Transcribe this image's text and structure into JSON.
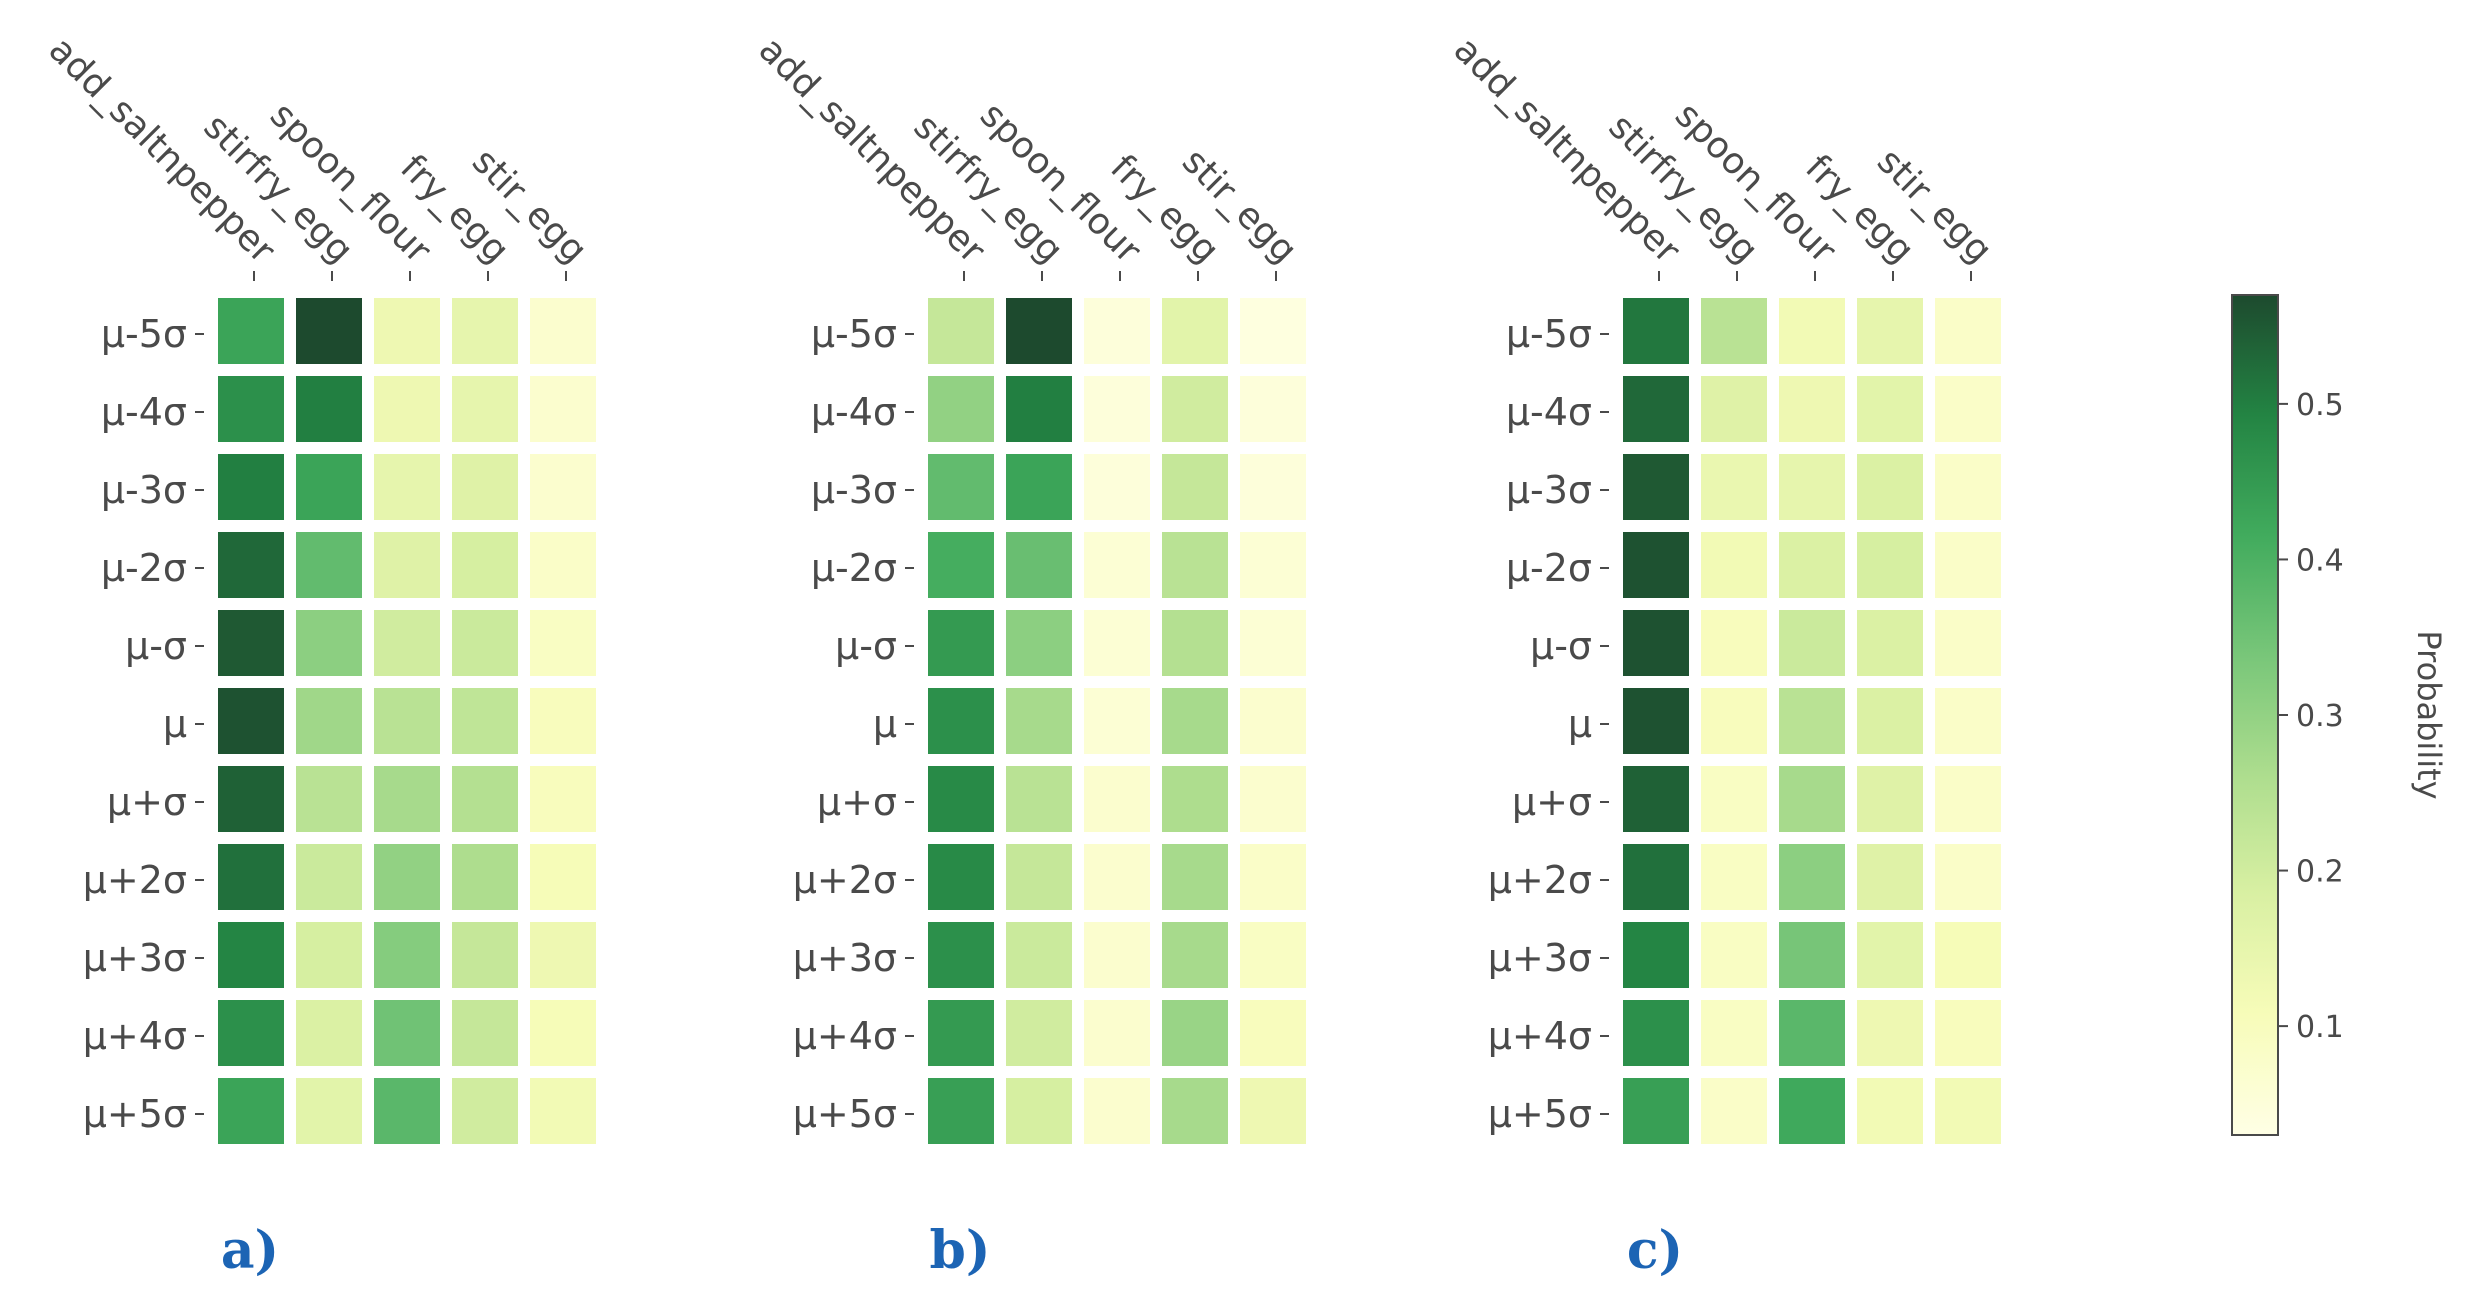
{
  "chart_data": [
    {
      "type": "heatmap",
      "panel_label": "a)",
      "columns": [
        "add_saltnpepper",
        "stirfry_egg",
        "spoon_flour",
        "fry_egg",
        "stir_egg"
      ],
      "rows": [
        "μ-5σ",
        "μ-4σ",
        "μ-3σ",
        "μ-2σ",
        "μ-σ",
        "μ",
        "μ+σ",
        "μ+2σ",
        "μ+3σ",
        "μ+4σ",
        "μ+5σ"
      ],
      "values": [
        [
          0.43,
          0.57,
          0.13,
          0.15,
          0.07
        ],
        [
          0.47,
          0.5,
          0.13,
          0.15,
          0.07
        ],
        [
          0.5,
          0.43,
          0.15,
          0.17,
          0.07
        ],
        [
          0.53,
          0.37,
          0.17,
          0.19,
          0.08
        ],
        [
          0.55,
          0.31,
          0.2,
          0.21,
          0.09
        ],
        [
          0.56,
          0.28,
          0.24,
          0.23,
          0.1
        ],
        [
          0.54,
          0.24,
          0.27,
          0.25,
          0.1
        ],
        [
          0.52,
          0.21,
          0.3,
          0.26,
          0.11
        ],
        [
          0.49,
          0.19,
          0.32,
          0.22,
          0.13
        ],
        [
          0.47,
          0.18,
          0.35,
          0.22,
          0.11
        ],
        [
          0.43,
          0.16,
          0.38,
          0.2,
          0.12
        ]
      ]
    },
    {
      "type": "heatmap",
      "panel_label": "b)",
      "columns": [
        "add_saltnpepper",
        "stirfry_egg",
        "spoon_flour",
        "fry_egg",
        "stir_egg"
      ],
      "rows": [
        "μ-5σ",
        "μ-4σ",
        "μ-3σ",
        "μ-2σ",
        "μ-σ",
        "μ",
        "μ+σ",
        "μ+2σ",
        "μ+3σ",
        "μ+4σ",
        "μ+5σ"
      ],
      "values": [
        [
          0.22,
          0.57,
          0.05,
          0.16,
          0.04
        ],
        [
          0.3,
          0.5,
          0.05,
          0.2,
          0.05
        ],
        [
          0.37,
          0.43,
          0.05,
          0.22,
          0.05
        ],
        [
          0.41,
          0.36,
          0.06,
          0.24,
          0.06
        ],
        [
          0.45,
          0.31,
          0.06,
          0.25,
          0.06
        ],
        [
          0.47,
          0.27,
          0.06,
          0.27,
          0.07
        ],
        [
          0.48,
          0.24,
          0.07,
          0.26,
          0.07
        ],
        [
          0.48,
          0.22,
          0.07,
          0.27,
          0.08
        ],
        [
          0.47,
          0.21,
          0.07,
          0.27,
          0.09
        ],
        [
          0.45,
          0.2,
          0.07,
          0.29,
          0.1
        ],
        [
          0.44,
          0.19,
          0.07,
          0.27,
          0.13
        ]
      ]
    },
    {
      "type": "heatmap",
      "panel_label": "c)",
      "columns": [
        "add_saltnpepper",
        "stirfry_egg",
        "spoon_flour",
        "fry_egg",
        "stir_egg"
      ],
      "rows": [
        "μ-5σ",
        "μ-4σ",
        "μ-3σ",
        "μ-2σ",
        "μ-σ",
        "μ",
        "μ+σ",
        "μ+2σ",
        "μ+3σ",
        "μ+4σ",
        "μ+5σ"
      ],
      "values": [
        [
          0.51,
          0.24,
          0.12,
          0.15,
          0.08
        ],
        [
          0.53,
          0.17,
          0.13,
          0.16,
          0.08
        ],
        [
          0.55,
          0.14,
          0.15,
          0.18,
          0.08
        ],
        [
          0.56,
          0.12,
          0.18,
          0.19,
          0.08
        ],
        [
          0.56,
          0.1,
          0.21,
          0.18,
          0.08
        ],
        [
          0.56,
          0.1,
          0.24,
          0.18,
          0.08
        ],
        [
          0.54,
          0.09,
          0.27,
          0.17,
          0.08
        ],
        [
          0.52,
          0.09,
          0.31,
          0.17,
          0.08
        ],
        [
          0.49,
          0.09,
          0.34,
          0.16,
          0.11
        ],
        [
          0.47,
          0.09,
          0.38,
          0.13,
          0.1
        ],
        [
          0.44,
          0.08,
          0.42,
          0.12,
          0.12
        ]
      ]
    }
  ],
  "colorbar": {
    "title": "Probability",
    "min": 0.03,
    "max": 0.57,
    "ticks": [
      0.1,
      0.2,
      0.3,
      0.4,
      0.5
    ],
    "tick_labels": [
      "0.1",
      "0.2",
      "0.3",
      "0.4",
      "0.5"
    ],
    "colormap": "YlGn",
    "stops": [
      "#ffffe5",
      "#f7fcb9",
      "#d9f0a3",
      "#addd8e",
      "#78c679",
      "#41ab5d",
      "#238443",
      "#1d4a2e"
    ]
  },
  "colors": {
    "text": "#4a4a4a",
    "panel_label": "#1c64b4",
    "highlight_border": "#000000"
  }
}
